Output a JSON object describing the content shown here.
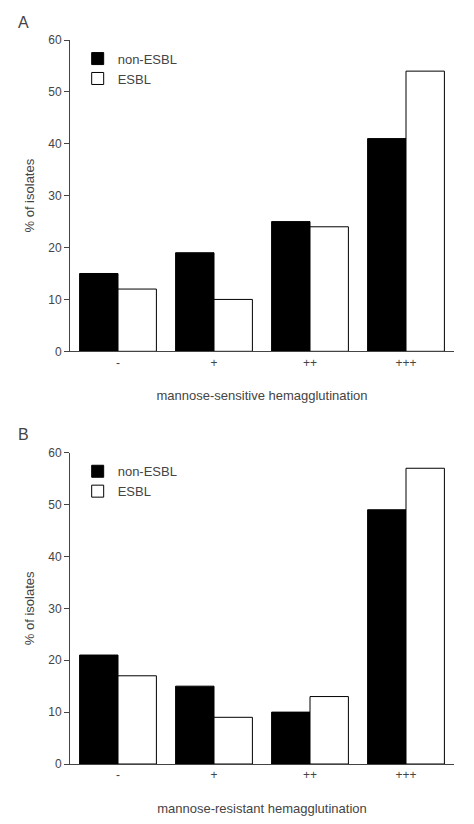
{
  "chart_data": [
    {
      "type": "bar",
      "title": "A",
      "categories": [
        "-",
        "+",
        "++",
        "+++"
      ],
      "series": [
        {
          "name": "non-ESBL",
          "color": "#000000",
          "values": [
            15,
            19,
            25,
            41
          ]
        },
        {
          "name": "ESBL",
          "color": "#ffffff",
          "values": [
            12,
            10,
            24,
            54
          ]
        }
      ],
      "ylabel": "% of isolates",
      "xlabel": "mannose-sensitive hemagglutination",
      "ylim": [
        0,
        60
      ],
      "yticks": [
        0,
        10,
        20,
        30,
        40,
        50,
        60
      ],
      "grid": false,
      "legend": "upper left"
    },
    {
      "type": "bar",
      "title": "B",
      "categories": [
        "-",
        "+",
        "++",
        "+++"
      ],
      "series": [
        {
          "name": "non-ESBL",
          "color": "#000000",
          "values": [
            21,
            15,
            10,
            49
          ]
        },
        {
          "name": "ESBL",
          "color": "#ffffff",
          "values": [
            17,
            9,
            13,
            57
          ]
        }
      ],
      "ylabel": "% of isolates",
      "xlabel": "mannose-resistant hemagglutination",
      "ylim": [
        0,
        60
      ],
      "yticks": [
        0,
        10,
        20,
        30,
        40,
        50,
        60
      ],
      "grid": false,
      "legend": "upper left"
    }
  ]
}
